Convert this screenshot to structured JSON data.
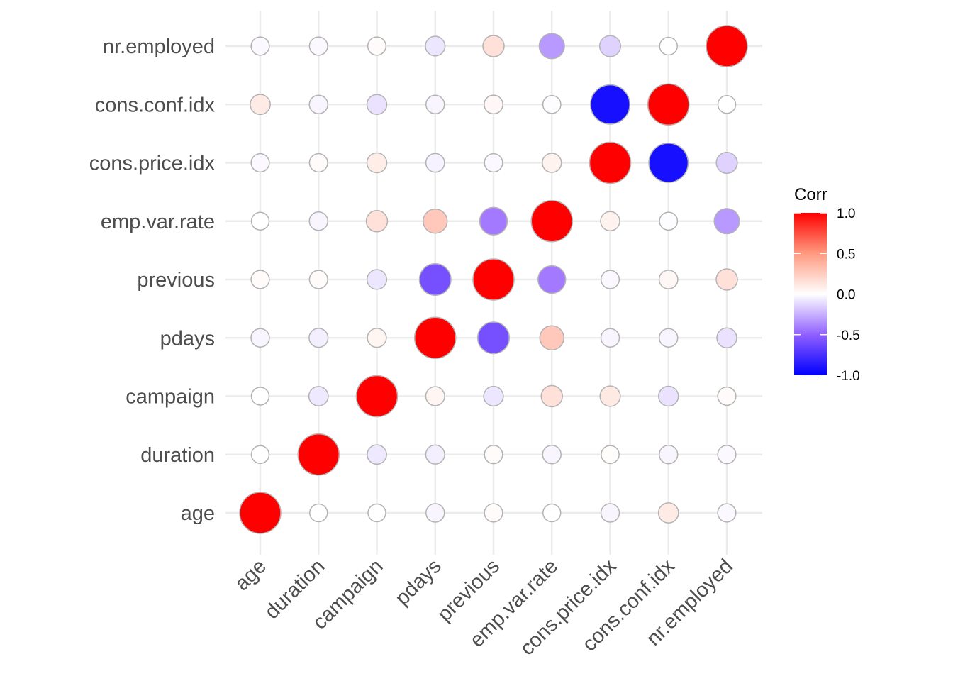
{
  "chart_data": {
    "type": "heatmap",
    "subtype": "correlation-circle-matrix",
    "title": "",
    "xlabel": "",
    "ylabel": "",
    "variables": [
      "age",
      "duration",
      "campaign",
      "pdays",
      "previous",
      "emp.var.rate",
      "cons.price.idx",
      "cons.conf.idx",
      "nr.employed"
    ],
    "x_categories": [
      "age",
      "duration",
      "campaign",
      "pdays",
      "previous",
      "emp.var.rate",
      "cons.price.idx",
      "cons.conf.idx",
      "nr.employed"
    ],
    "y_categories_bottom_to_top": [
      "age",
      "duration",
      "campaign",
      "pdays",
      "previous",
      "emp.var.rate",
      "cons.price.idx",
      "cons.conf.idx",
      "nr.employed"
    ],
    "matrix": [
      [
        1.0,
        0.0,
        0.0,
        -0.03,
        0.02,
        0.0,
        -0.03,
        0.1,
        -0.02
      ],
      [
        0.0,
        1.0,
        -0.07,
        -0.05,
        0.02,
        -0.03,
        0.01,
        -0.03,
        -0.02
      ],
      [
        0.0,
        -0.07,
        1.0,
        0.05,
        -0.08,
        0.15,
        0.11,
        -0.09,
        0.02
      ],
      [
        -0.03,
        -0.05,
        0.05,
        1.0,
        -0.59,
        0.27,
        -0.03,
        -0.03,
        -0.09
      ],
      [
        0.02,
        0.02,
        -0.08,
        -0.59,
        1.0,
        -0.42,
        -0.02,
        0.04,
        0.15
      ],
      [
        0.0,
        -0.03,
        0.15,
        0.27,
        -0.42,
        1.0,
        0.06,
        -0.01,
        -0.32
      ],
      [
        -0.02,
        0.02,
        0.09,
        -0.04,
        -0.02,
        0.06,
        1.0,
        -0.92,
        -0.14
      ],
      [
        0.1,
        -0.03,
        -0.09,
        -0.03,
        0.04,
        -0.01,
        -0.92,
        1.0,
        0.0
      ],
      [
        -0.02,
        -0.02,
        0.02,
        -0.08,
        0.15,
        -0.32,
        -0.14,
        0.0,
        1.0
      ]
    ],
    "legend": {
      "title": "Corr",
      "placement": "right",
      "range": [
        -1,
        1
      ],
      "ticks": [
        1.0,
        0.5,
        0.0,
        -0.5,
        -1.0
      ],
      "tick_labels": [
        "1.0",
        "0.5",
        "0.0",
        "-0.5",
        "-1.0"
      ],
      "colors": {
        "low": "#0000FF",
        "mid": "#FFFFFF",
        "high": "#FF0000"
      }
    },
    "size_encodes": "absolute correlation",
    "grid": true,
    "x_tick_rotation_deg": 45
  }
}
